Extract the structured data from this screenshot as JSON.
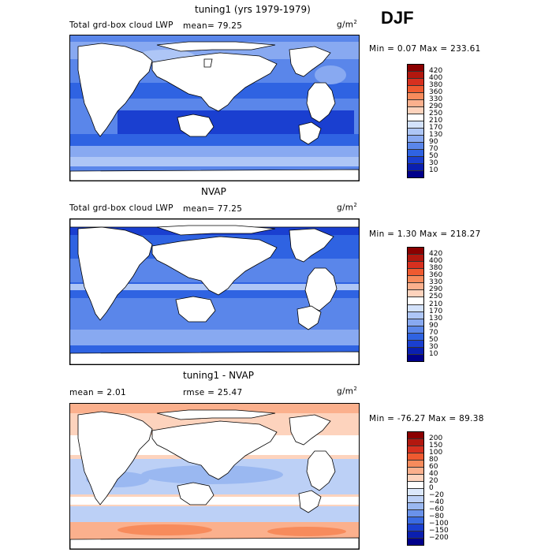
{
  "season": "DJF",
  "panels": [
    {
      "title": "tuning1 (yrs 1979-1979)",
      "variable": "Total grd-box cloud LWP",
      "stat_left": "mean=  79.25",
      "units_base": "g/m",
      "units_exp": "2",
      "range": "Min =   0.07 Max = 233.61",
      "ticks": [
        "420",
        "400",
        "380",
        "360",
        "330",
        "290",
        "250",
        "210",
        "170",
        "130",
        "90",
        "70",
        "50",
        "30",
        "10"
      ],
      "colors": [
        "#8b0000",
        "#b2180f",
        "#d7301f",
        "#ef5a30",
        "#f78b5c",
        "#fbb08d",
        "#fdd3bd",
        "#ffffff",
        "#d3e2fb",
        "#aec6f6",
        "#88a9f1",
        "#5a86ea",
        "#2f63e2",
        "#1a3fd0",
        "#0a1fb0",
        "#00008b"
      ]
    },
    {
      "title": "NVAP",
      "variable": "Total grd-box cloud LWP",
      "stat_left": "mean=  77.25",
      "units_base": "g/m",
      "units_exp": "2",
      "range": "Min =   1.30 Max = 218.27",
      "ticks": [
        "420",
        "400",
        "380",
        "360",
        "330",
        "290",
        "250",
        "210",
        "170",
        "130",
        "90",
        "70",
        "50",
        "30",
        "10"
      ],
      "colors": [
        "#8b0000",
        "#b2180f",
        "#d7301f",
        "#ef5a30",
        "#f78b5c",
        "#fbb08d",
        "#fdd3bd",
        "#ffffff",
        "#d3e2fb",
        "#aec6f6",
        "#88a9f1",
        "#5a86ea",
        "#2f63e2",
        "#1a3fd0",
        "#0a1fb0",
        "#00008b"
      ]
    },
    {
      "title": "tuning1 - NVAP",
      "stat_left": "mean =   2.01",
      "stat_mid": "rmse =  25.47",
      "units_base": "g/m",
      "units_exp": "2",
      "range": "Min = -76.27 Max =  89.38",
      "ticks": [
        "200",
        "150",
        "100",
        "80",
        "60",
        "40",
        "20",
        "0",
        "−20",
        "−40",
        "−60",
        "−80",
        "−100",
        "−150",
        "−200"
      ],
      "colors": [
        "#8b0000",
        "#b2180f",
        "#d7301f",
        "#ef5a30",
        "#f78b5c",
        "#fbb08d",
        "#fdd3bd",
        "#ffffff",
        "#dce8fb",
        "#bcd0f6",
        "#9ab8f1",
        "#6a92ea",
        "#3a6be2",
        "#1a3fd0",
        "#0a1fb0",
        "#00008b"
      ]
    }
  ]
}
